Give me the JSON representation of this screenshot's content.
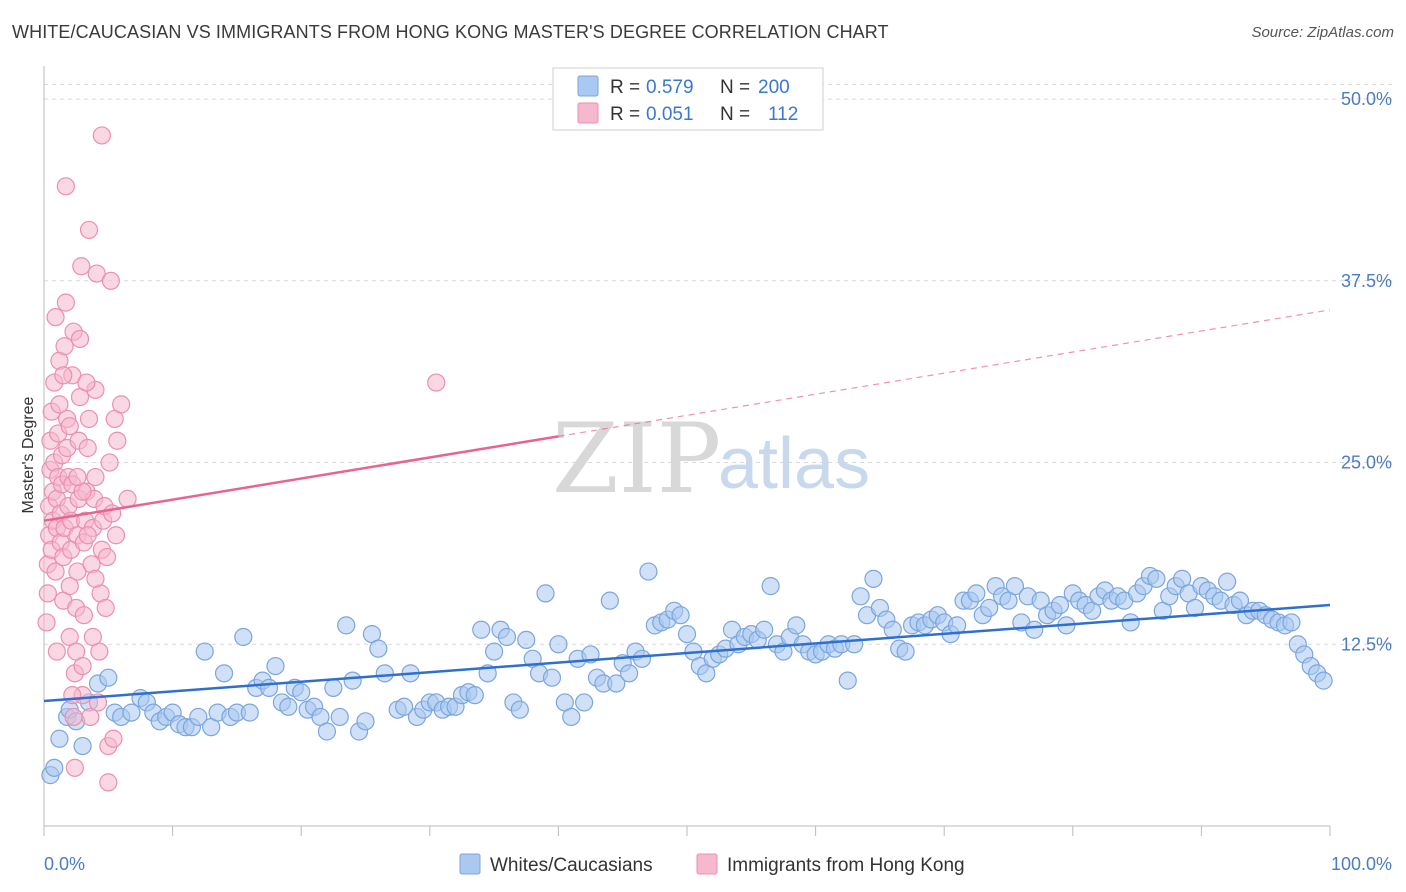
{
  "title": "WHITE/CAUCASIAN VS IMMIGRANTS FROM HONG KONG MASTER'S DEGREE CORRELATION CHART",
  "source": "Source: ZipAtlas.com",
  "colors": {
    "blue_fill": "#aac8f0",
    "blue_stroke": "#7aa6de",
    "blue_line": "#2f6fcf",
    "pink_fill": "#f6b8cc",
    "pink_stroke": "#ec8fae",
    "pink_line": "#e8648f",
    "grid": "#d9d9d9",
    "tick_text": "#4a7cc4"
  },
  "legend_box": {
    "row1": {
      "r_label": "R =",
      "r_value": "0.579",
      "n_label": "N =",
      "n_value": "200"
    },
    "row2": {
      "r_label": "R =",
      "r_value": "0.051",
      "n_label": "N =",
      "n_value": "112"
    }
  },
  "watermark": {
    "zip": "ZIP",
    "atlas": "atlas"
  },
  "chart_data": {
    "type": "scatter",
    "title": "WHITE/CAUCASIAN VS IMMIGRANTS FROM HONG KONG MASTER'S DEGREE CORRELATION CHART",
    "xlabel": "",
    "ylabel": "Master's Degree",
    "xlim": [
      0,
      100
    ],
    "ylim": [
      0,
      52
    ],
    "y_ticks": [
      12.5,
      25.0,
      37.5,
      50.0
    ],
    "y_tick_labels": [
      "12.5%",
      "25.0%",
      "37.5%",
      "50.0%"
    ],
    "x_tick_labels": [
      "0.0%",
      "100.0%"
    ],
    "grid": "horizontal dashed",
    "legend": "top-center",
    "series": [
      {
        "name": "Whites/Caucasians",
        "R": 0.579,
        "N": 200,
        "trend": {
          "x": [
            0,
            100
          ],
          "y": [
            8.6,
            15.2
          ],
          "dashed_from": null
        },
        "points": [
          [
            0.5,
            3.5
          ],
          [
            0.8,
            4.0
          ],
          [
            1.2,
            6.0
          ],
          [
            1.8,
            7.5
          ],
          [
            2.0,
            8.0
          ],
          [
            2.5,
            7.2
          ],
          [
            3.0,
            5.5
          ],
          [
            3.5,
            8.5
          ],
          [
            4.2,
            9.8
          ],
          [
            5.0,
            10.2
          ],
          [
            5.5,
            7.8
          ],
          [
            6.0,
            7.5
          ],
          [
            6.8,
            7.8
          ],
          [
            7.5,
            8.8
          ],
          [
            8.0,
            8.5
          ],
          [
            8.5,
            7.8
          ],
          [
            9.0,
            7.2
          ],
          [
            9.5,
            7.5
          ],
          [
            10.0,
            7.8
          ],
          [
            10.5,
            7.0
          ],
          [
            11.0,
            6.8
          ],
          [
            11.5,
            6.8
          ],
          [
            12.0,
            7.5
          ],
          [
            12.5,
            12.0
          ],
          [
            13.0,
            6.8
          ],
          [
            13.5,
            7.8
          ],
          [
            14.0,
            10.5
          ],
          [
            14.5,
            7.5
          ],
          [
            15.0,
            7.8
          ],
          [
            15.5,
            13.0
          ],
          [
            16.0,
            7.8
          ],
          [
            16.5,
            9.5
          ],
          [
            17.0,
            10.0
          ],
          [
            17.5,
            9.5
          ],
          [
            18.0,
            11.0
          ],
          [
            18.5,
            8.5
          ],
          [
            19.0,
            8.2
          ],
          [
            19.5,
            9.5
          ],
          [
            20.0,
            9.2
          ],
          [
            20.5,
            8.0
          ],
          [
            21.0,
            8.2
          ],
          [
            21.5,
            7.5
          ],
          [
            22.0,
            6.5
          ],
          [
            22.5,
            9.5
          ],
          [
            23.0,
            7.5
          ],
          [
            23.5,
            13.8
          ],
          [
            24.0,
            10.0
          ],
          [
            24.5,
            6.5
          ],
          [
            25.0,
            7.2
          ],
          [
            25.5,
            13.2
          ],
          [
            26.0,
            12.2
          ],
          [
            26.5,
            10.5
          ],
          [
            27.5,
            8.0
          ],
          [
            28.0,
            8.2
          ],
          [
            28.5,
            10.5
          ],
          [
            29.0,
            7.5
          ],
          [
            29.5,
            8.0
          ],
          [
            30.0,
            8.5
          ],
          [
            30.5,
            8.5
          ],
          [
            31.0,
            8.0
          ],
          [
            31.5,
            8.2
          ],
          [
            32.0,
            8.2
          ],
          [
            32.5,
            9.0
          ],
          [
            33.0,
            9.2
          ],
          [
            33.5,
            9.0
          ],
          [
            34.0,
            13.5
          ],
          [
            34.5,
            10.5
          ],
          [
            35.0,
            12.0
          ],
          [
            35.5,
            13.5
          ],
          [
            36.0,
            13.0
          ],
          [
            36.5,
            8.5
          ],
          [
            37.0,
            8.0
          ],
          [
            37.5,
            12.8
          ],
          [
            38.0,
            11.5
          ],
          [
            38.5,
            10.5
          ],
          [
            39.0,
            16.0
          ],
          [
            39.5,
            10.2
          ],
          [
            40.0,
            12.5
          ],
          [
            40.5,
            8.5
          ],
          [
            41.0,
            7.5
          ],
          [
            41.5,
            11.5
          ],
          [
            42.0,
            8.5
          ],
          [
            42.5,
            11.8
          ],
          [
            43.0,
            10.2
          ],
          [
            43.5,
            9.8
          ],
          [
            44.0,
            15.5
          ],
          [
            44.5,
            9.8
          ],
          [
            45.0,
            11.2
          ],
          [
            45.5,
            10.5
          ],
          [
            46.0,
            12.0
          ],
          [
            46.5,
            11.5
          ],
          [
            47.0,
            17.5
          ],
          [
            47.5,
            13.8
          ],
          [
            48.0,
            14.0
          ],
          [
            48.5,
            14.2
          ],
          [
            49.0,
            14.8
          ],
          [
            49.5,
            14.5
          ],
          [
            50.0,
            13.2
          ],
          [
            50.5,
            12.0
          ],
          [
            51.0,
            11.0
          ],
          [
            51.5,
            10.5
          ],
          [
            52.0,
            11.5
          ],
          [
            52.5,
            11.8
          ],
          [
            53.0,
            12.2
          ],
          [
            53.5,
            13.5
          ],
          [
            54.0,
            12.5
          ],
          [
            54.5,
            13.0
          ],
          [
            55.0,
            13.2
          ],
          [
            55.5,
            12.8
          ],
          [
            56.0,
            13.5
          ],
          [
            56.5,
            16.5
          ],
          [
            57.0,
            12.5
          ],
          [
            57.5,
            12.0
          ],
          [
            58.0,
            13.0
          ],
          [
            58.5,
            13.8
          ],
          [
            59.0,
            12.5
          ],
          [
            59.5,
            12.0
          ],
          [
            60.0,
            11.8
          ],
          [
            60.5,
            12.0
          ],
          [
            61.0,
            12.5
          ],
          [
            61.5,
            12.2
          ],
          [
            62.0,
            12.5
          ],
          [
            62.5,
            10.0
          ],
          [
            63.0,
            12.5
          ],
          [
            63.5,
            15.8
          ],
          [
            64.0,
            14.5
          ],
          [
            64.5,
            17.0
          ],
          [
            65.0,
            15.0
          ],
          [
            65.5,
            14.2
          ],
          [
            66.0,
            13.5
          ],
          [
            66.5,
            12.2
          ],
          [
            67.0,
            12.0
          ],
          [
            67.5,
            13.8
          ],
          [
            68.0,
            14.0
          ],
          [
            68.5,
            13.8
          ],
          [
            69.0,
            14.2
          ],
          [
            69.5,
            14.5
          ],
          [
            70.0,
            14.0
          ],
          [
            70.5,
            13.2
          ],
          [
            71.0,
            13.8
          ],
          [
            71.5,
            15.5
          ],
          [
            72.0,
            15.5
          ],
          [
            72.5,
            16.0
          ],
          [
            73.0,
            14.5
          ],
          [
            73.5,
            15.0
          ],
          [
            74.0,
            16.5
          ],
          [
            74.5,
            15.8
          ],
          [
            75.0,
            15.5
          ],
          [
            75.5,
            16.5
          ],
          [
            76.0,
            14.0
          ],
          [
            76.5,
            15.8
          ],
          [
            77.0,
            13.5
          ],
          [
            77.5,
            15.5
          ],
          [
            78.0,
            14.5
          ],
          [
            78.5,
            14.8
          ],
          [
            79.0,
            15.2
          ],
          [
            79.5,
            13.8
          ],
          [
            80.0,
            16.0
          ],
          [
            80.5,
            15.5
          ],
          [
            81.0,
            15.2
          ],
          [
            81.5,
            14.8
          ],
          [
            82.0,
            15.8
          ],
          [
            82.5,
            16.2
          ],
          [
            83.0,
            15.5
          ],
          [
            83.5,
            15.8
          ],
          [
            84.0,
            15.5
          ],
          [
            84.5,
            14.0
          ],
          [
            85.0,
            16.0
          ],
          [
            85.5,
            16.5
          ],
          [
            86.0,
            17.2
          ],
          [
            86.5,
            17.0
          ],
          [
            87.0,
            14.8
          ],
          [
            87.5,
            15.8
          ],
          [
            88.0,
            16.5
          ],
          [
            88.5,
            17.0
          ],
          [
            89.0,
            16.0
          ],
          [
            89.5,
            15.0
          ],
          [
            90.0,
            16.5
          ],
          [
            90.5,
            16.2
          ],
          [
            91.0,
            15.8
          ],
          [
            91.5,
            15.5
          ],
          [
            92.0,
            16.8
          ],
          [
            92.5,
            15.2
          ],
          [
            93.0,
            15.5
          ],
          [
            93.5,
            14.5
          ],
          [
            94.0,
            14.8
          ],
          [
            94.5,
            14.8
          ],
          [
            95.0,
            14.5
          ],
          [
            95.5,
            14.2
          ],
          [
            96.0,
            14.0
          ],
          [
            96.5,
            13.8
          ],
          [
            97.0,
            14.0
          ],
          [
            97.5,
            12.5
          ],
          [
            98.0,
            11.8
          ],
          [
            98.5,
            11.0
          ],
          [
            99.0,
            10.5
          ],
          [
            99.5,
            10.0
          ]
        ]
      },
      {
        "name": "Immigrants from Hong Kong",
        "R": 0.051,
        "N": 112,
        "trend": {
          "x": [
            0,
            100
          ],
          "y": [
            21.0,
            35.5
          ],
          "dashed_from": 40
        },
        "points": [
          [
            0.2,
            14.0
          ],
          [
            0.3,
            16.0
          ],
          [
            0.3,
            18.0
          ],
          [
            0.4,
            20.0
          ],
          [
            0.4,
            22.0
          ],
          [
            0.5,
            24.5
          ],
          [
            0.5,
            26.5
          ],
          [
            0.6,
            28.5
          ],
          [
            0.6,
            19.0
          ],
          [
            0.7,
            21.0
          ],
          [
            0.7,
            23.0
          ],
          [
            0.8,
            25.0
          ],
          [
            0.8,
            30.5
          ],
          [
            0.9,
            35.0
          ],
          [
            0.9,
            17.5
          ],
          [
            1.0,
            20.5
          ],
          [
            1.0,
            22.5
          ],
          [
            1.1,
            24.0
          ],
          [
            1.1,
            27.0
          ],
          [
            1.2,
            29.0
          ],
          [
            1.2,
            32.0
          ],
          [
            1.3,
            19.5
          ],
          [
            1.3,
            21.5
          ],
          [
            1.4,
            23.5
          ],
          [
            1.4,
            25.5
          ],
          [
            1.5,
            15.5
          ],
          [
            1.5,
            18.5
          ],
          [
            1.6,
            20.5
          ],
          [
            1.6,
            33.0
          ],
          [
            1.7,
            36.0
          ],
          [
            1.7,
            44.0
          ],
          [
            1.8,
            26.0
          ],
          [
            1.8,
            28.0
          ],
          [
            1.9,
            22.0
          ],
          [
            1.9,
            24.0
          ],
          [
            2.0,
            13.0
          ],
          [
            2.0,
            16.5
          ],
          [
            2.1,
            19.0
          ],
          [
            2.1,
            21.0
          ],
          [
            2.2,
            23.5
          ],
          [
            2.2,
            31.0
          ],
          [
            2.3,
            34.0
          ],
          [
            2.3,
            7.5
          ],
          [
            2.4,
            4.0
          ],
          [
            2.4,
            10.5
          ],
          [
            2.5,
            12.0
          ],
          [
            2.5,
            15.0
          ],
          [
            2.6,
            17.5
          ],
          [
            2.6,
            20.0
          ],
          [
            2.7,
            22.5
          ],
          [
            2.7,
            26.5
          ],
          [
            2.8,
            29.5
          ],
          [
            2.8,
            33.5
          ],
          [
            2.9,
            38.5
          ],
          [
            3.0,
            9.0
          ],
          [
            3.0,
            11.0
          ],
          [
            3.1,
            14.5
          ],
          [
            3.1,
            19.5
          ],
          [
            3.2,
            21.0
          ],
          [
            3.3,
            23.0
          ],
          [
            3.4,
            26.0
          ],
          [
            3.5,
            28.0
          ],
          [
            3.5,
            41.0
          ],
          [
            3.6,
            7.5
          ],
          [
            3.7,
            18.0
          ],
          [
            3.8,
            20.5
          ],
          [
            3.9,
            22.5
          ],
          [
            4.0,
            24.0
          ],
          [
            4.0,
            30.0
          ],
          [
            4.1,
            38.0
          ],
          [
            4.2,
            8.5
          ],
          [
            4.3,
            12.0
          ],
          [
            4.4,
            16.0
          ],
          [
            4.5,
            19.0
          ],
          [
            4.5,
            47.5
          ],
          [
            4.6,
            21.0
          ],
          [
            4.7,
            22.0
          ],
          [
            4.8,
            15.0
          ],
          [
            4.9,
            18.5
          ],
          [
            5.0,
            5.5
          ],
          [
            5.0,
            3.0
          ],
          [
            5.1,
            25.0
          ],
          [
            5.2,
            37.5
          ],
          [
            5.3,
            21.5
          ],
          [
            5.4,
            6.0
          ],
          [
            5.5,
            28.0
          ],
          [
            5.6,
            20.0
          ],
          [
            5.7,
            26.5
          ],
          [
            6.0,
            29.0
          ],
          [
            6.5,
            22.5
          ],
          [
            3.0,
            23.0
          ],
          [
            2.6,
            24.0
          ],
          [
            3.4,
            20.0
          ],
          [
            2.0,
            27.5
          ],
          [
            1.5,
            31.0
          ],
          [
            4.0,
            17.0
          ],
          [
            3.8,
            13.0
          ],
          [
            1.0,
            12.0
          ],
          [
            2.2,
            9.0
          ],
          [
            3.3,
            30.5
          ],
          [
            30.5,
            30.5
          ]
        ]
      }
    ]
  },
  "bottom_legend": [
    {
      "label": "Whites/Caucasians"
    },
    {
      "label": "Immigrants from Hong Kong"
    }
  ]
}
